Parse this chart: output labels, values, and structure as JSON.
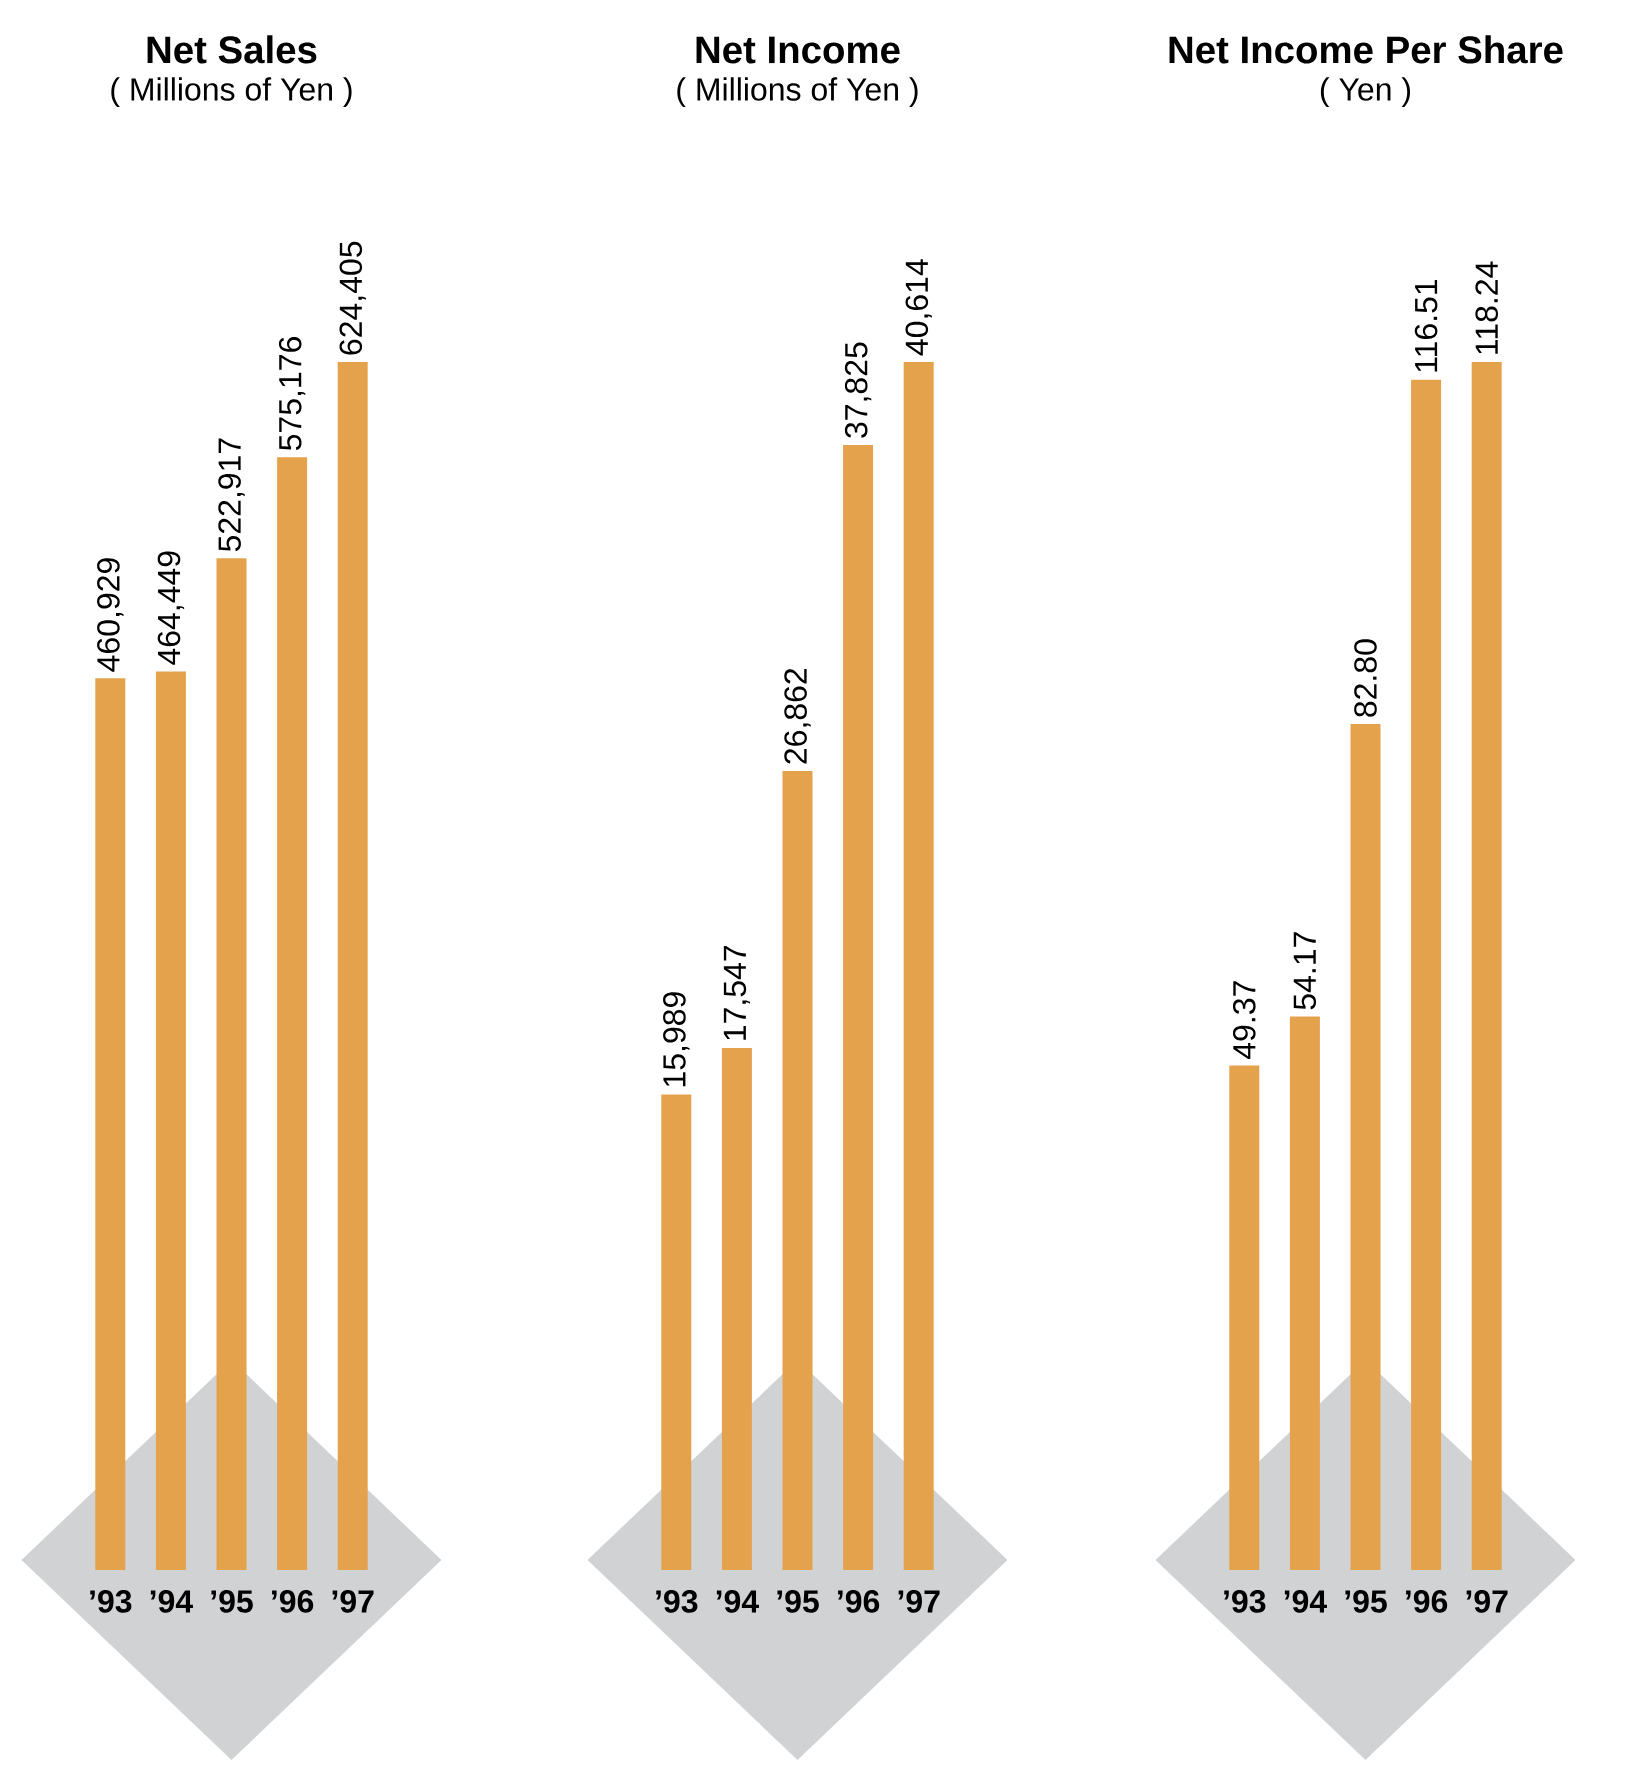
{
  "chart_data": [
    {
      "type": "bar",
      "title": "Net Sales",
      "subtitle": "( Millions of Yen )",
      "categories": [
        "’93",
        "’94",
        "’95",
        "’96",
        "’97"
      ],
      "values": [
        460929,
        464449,
        522917,
        575176,
        624405
      ],
      "value_labels": [
        "460,929",
        "464,449",
        "522,917",
        "575,176",
        "624,405"
      ],
      "color": "#e5a24c",
      "tick_labels": "x"
    },
    {
      "type": "bar",
      "title": "Net Income",
      "subtitle": "( Millions of Yen )",
      "categories": [
        "’93",
        "’94",
        "’95",
        "’96",
        "’97"
      ],
      "values": [
        15989,
        17547,
        26862,
        37825,
        40614
      ],
      "value_labels": [
        "15,989",
        "17,547",
        "26,862",
        "37,825",
        "40,614"
      ],
      "color": "#e5a24c",
      "tick_labels": "x"
    },
    {
      "type": "bar",
      "title": "Net Income Per Share",
      "subtitle": "( Yen )",
      "categories": [
        "’93",
        "’94",
        "’95",
        "’96",
        "’97"
      ],
      "values": [
        49.37,
        54.17,
        82.8,
        116.51,
        118.24
      ],
      "value_labels": [
        "49.37",
        "54.17",
        "82.80",
        "116.51",
        "118.24"
      ],
      "color": "#e5a24c",
      "tick_labels": "x"
    }
  ]
}
